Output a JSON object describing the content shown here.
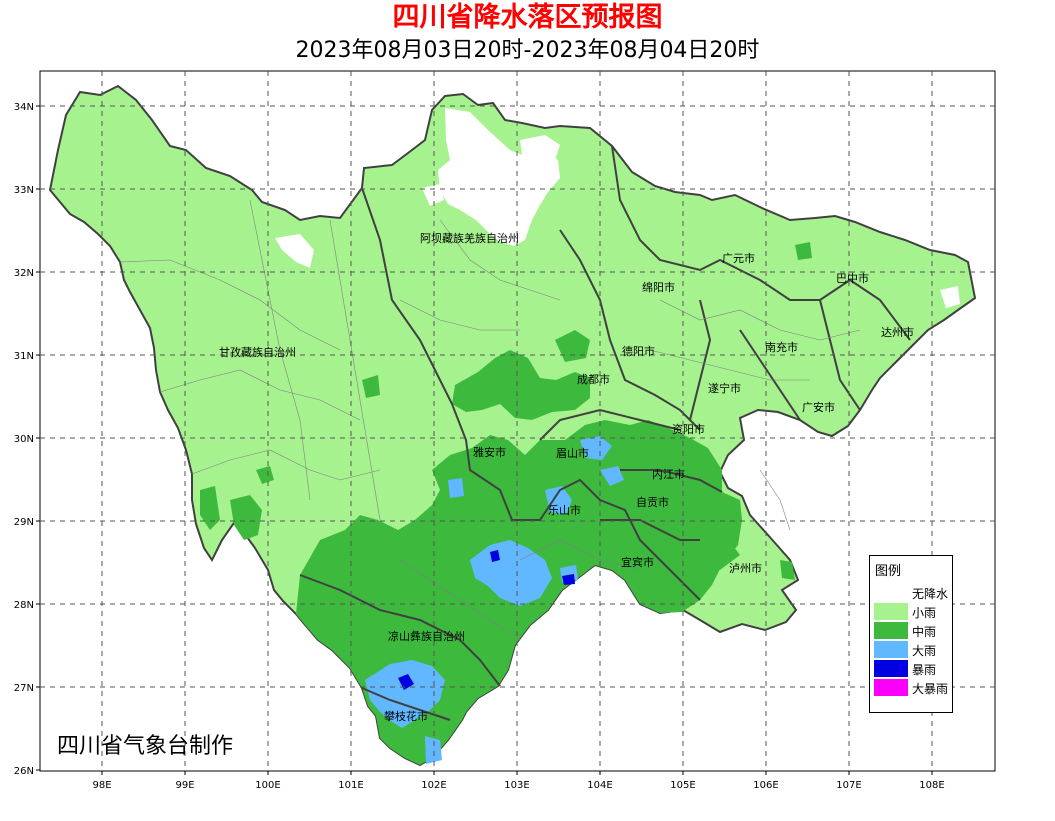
{
  "header": {
    "title": "四川省降水落区预报图",
    "subtitle": "2023年08月03日20时-2023年08月04日20时"
  },
  "credit": "四川省气象台制作",
  "axes": {
    "lat_ticks": [
      "34N",
      "33N",
      "32N",
      "31N",
      "30N",
      "29N",
      "28N",
      "27N",
      "26N"
    ],
    "lon_ticks": [
      "98E",
      "99E",
      "100E",
      "101E",
      "102E",
      "103E",
      "104E",
      "105E",
      "106E",
      "107E",
      "108E"
    ],
    "lon_range": [
      97.3,
      108.8
    ],
    "lat_range": [
      26,
      34.4
    ]
  },
  "legend": {
    "title": "图例",
    "items": [
      {
        "label": "无降水",
        "color": "#ffffff"
      },
      {
        "label": "小雨",
        "color": "#a6f28f"
      },
      {
        "label": "中雨",
        "color": "#3dba3d"
      },
      {
        "label": "大雨",
        "color": "#61b8ff"
      },
      {
        "label": "暴雨",
        "color": "#0000e1"
      },
      {
        "label": "大暴雨",
        "color": "#fa00fa"
      }
    ]
  },
  "regions": [
    {
      "name": "阿坝藏族羌族自治州"
    },
    {
      "name": "广元市"
    },
    {
      "name": "巴中市"
    },
    {
      "name": "绵阳市"
    },
    {
      "name": "甘孜藏族自治州"
    },
    {
      "name": "德阳市"
    },
    {
      "name": "达州市"
    },
    {
      "name": "南充市"
    },
    {
      "name": "成都市"
    },
    {
      "name": "遂宁市"
    },
    {
      "name": "广安市"
    },
    {
      "name": "资阳市"
    },
    {
      "name": "雅安市"
    },
    {
      "name": "眉山市"
    },
    {
      "name": "内江市"
    },
    {
      "name": "自贡市"
    },
    {
      "name": "乐山市"
    },
    {
      "name": "宜宾市"
    },
    {
      "name": "泸州市"
    },
    {
      "name": "凉山彝族自治州"
    },
    {
      "name": "攀枝花市"
    }
  ]
}
